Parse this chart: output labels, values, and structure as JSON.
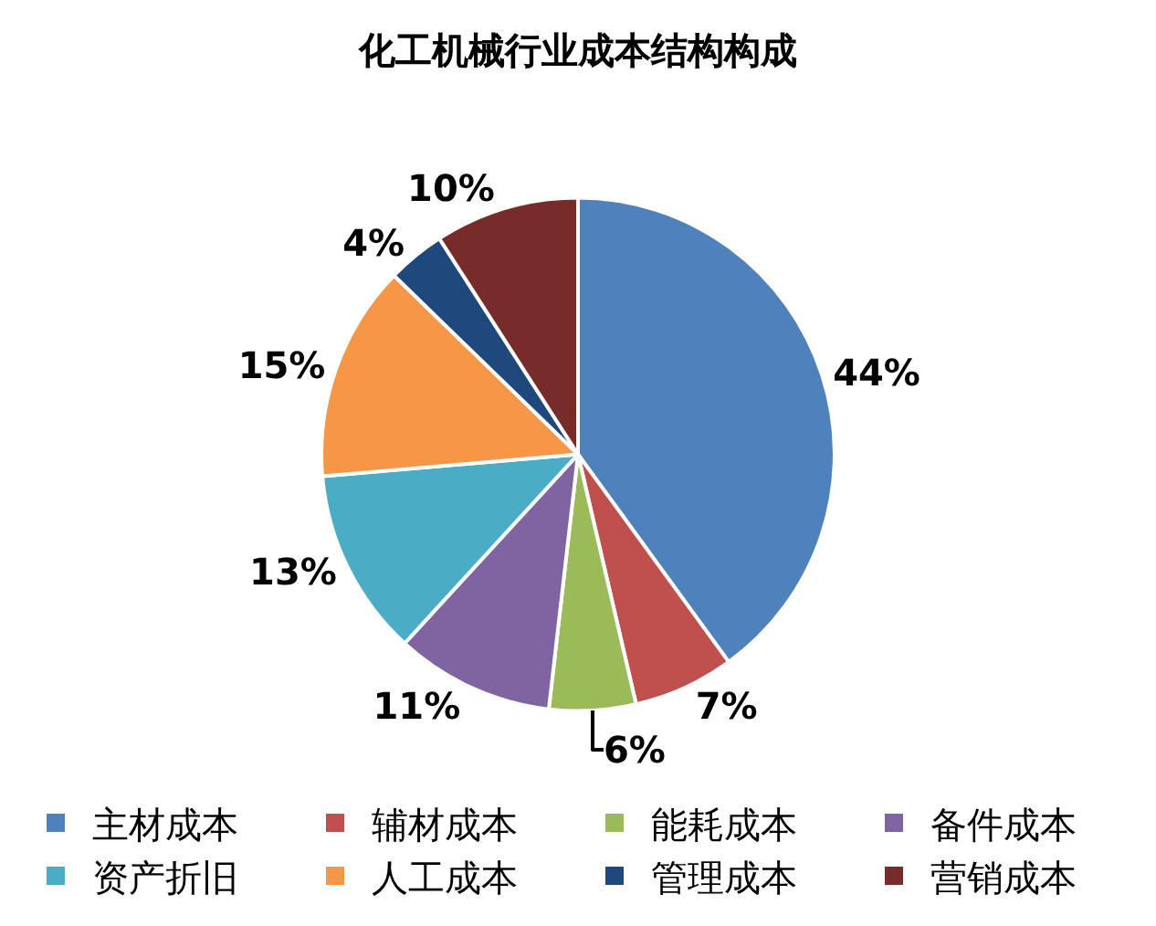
{
  "chart_data": {
    "type": "pie",
    "title": "化工机械行业成本结构构成",
    "categories": [
      "主材成本",
      "辅材成本",
      "能耗成本",
      "备件成本",
      "资产折旧",
      "人工成本",
      "管理成本",
      "营销成本"
    ],
    "values": [
      44,
      7,
      6,
      11,
      13,
      15,
      4,
      10
    ],
    "value_labels": [
      "44%",
      "7%",
      "6%",
      "11%",
      "13%",
      "15%",
      "4%",
      "10%"
    ],
    "colors": [
      "#4f81bd",
      "#c0504d",
      "#9bbb59",
      "#8064a2",
      "#4bacc6",
      "#f79646",
      "#1f497d",
      "#772c2a"
    ],
    "legend": "bottom"
  }
}
